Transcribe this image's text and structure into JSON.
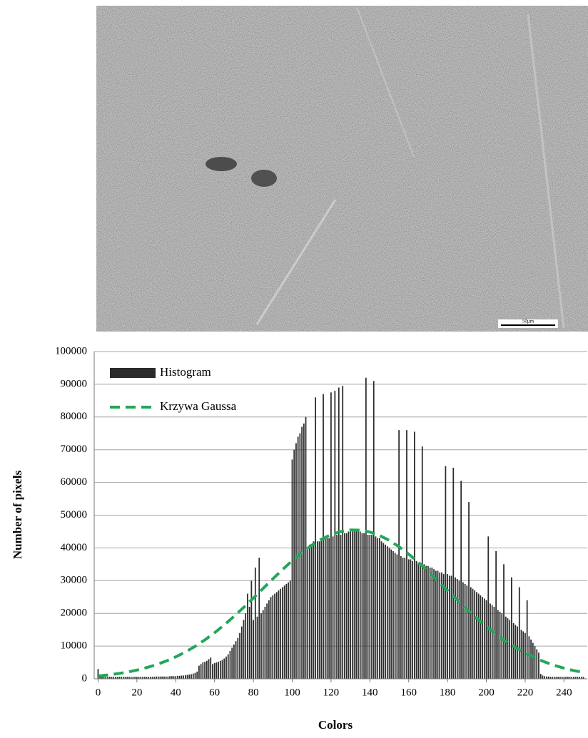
{
  "image": {
    "scale_bar_label": "50μm"
  },
  "chart_data": {
    "type": "bar",
    "xlabel": "Colors",
    "ylabel": "Number of pixels",
    "xlim": [
      -2,
      252
    ],
    "ylim": [
      0,
      100000
    ],
    "xticks": [
      0,
      20,
      40,
      60,
      80,
      100,
      120,
      140,
      160,
      180,
      200,
      220,
      240
    ],
    "yticks": [
      0,
      10000,
      20000,
      30000,
      40000,
      50000,
      60000,
      70000,
      80000,
      90000,
      100000
    ],
    "grid": true,
    "legend": "upper-left",
    "series": [
      {
        "name": "Histogram",
        "type": "bar",
        "color": "#2b2b2b",
        "x": [
          0,
          1,
          2,
          3,
          4,
          5,
          6,
          7,
          8,
          9,
          10,
          11,
          12,
          13,
          14,
          15,
          16,
          17,
          18,
          19,
          20,
          21,
          22,
          23,
          24,
          25,
          26,
          27,
          28,
          29,
          30,
          31,
          32,
          33,
          34,
          35,
          36,
          37,
          38,
          39,
          40,
          41,
          42,
          43,
          44,
          45,
          46,
          47,
          48,
          49,
          50,
          51,
          52,
          53,
          54,
          55,
          56,
          57,
          58,
          59,
          60,
          61,
          62,
          63,
          64,
          65,
          66,
          67,
          68,
          69,
          70,
          71,
          72,
          73,
          74,
          75,
          76,
          77,
          78,
          79,
          80,
          81,
          82,
          83,
          84,
          85,
          86,
          87,
          88,
          89,
          90,
          91,
          92,
          93,
          94,
          95,
          96,
          97,
          98,
          99,
          100,
          101,
          102,
          103,
          104,
          105,
          106,
          107,
          108,
          109,
          110,
          111,
          112,
          113,
          114,
          115,
          116,
          117,
          118,
          119,
          120,
          121,
          122,
          123,
          124,
          125,
          126,
          127,
          128,
          129,
          130,
          131,
          132,
          133,
          134,
          135,
          136,
          137,
          138,
          139,
          140,
          141,
          142,
          143,
          144,
          145,
          146,
          147,
          148,
          149,
          150,
          151,
          152,
          153,
          154,
          155,
          156,
          157,
          158,
          159,
          160,
          161,
          162,
          163,
          164,
          165,
          166,
          167,
          168,
          169,
          170,
          171,
          172,
          173,
          174,
          175,
          176,
          177,
          178,
          179,
          180,
          181,
          182,
          183,
          184,
          185,
          186,
          187,
          188,
          189,
          190,
          191,
          192,
          193,
          194,
          195,
          196,
          197,
          198,
          199,
          200,
          201,
          202,
          203,
          204,
          205,
          206,
          207,
          208,
          209,
          210,
          211,
          212,
          213,
          214,
          215,
          216,
          217,
          218,
          219,
          220,
          221,
          222,
          223,
          224,
          225,
          226,
          227,
          228,
          229,
          230,
          231,
          232,
          233,
          234,
          235,
          236,
          237,
          238,
          239,
          240,
          241,
          242,
          243,
          244,
          245,
          246,
          247,
          248,
          249,
          250
        ],
        "values": [
          3000,
          800,
          700,
          700,
          600,
          600,
          600,
          600,
          600,
          600,
          600,
          600,
          600,
          600,
          600,
          600,
          600,
          600,
          600,
          600,
          600,
          600,
          600,
          600,
          600,
          600,
          600,
          600,
          600,
          600,
          700,
          700,
          700,
          700,
          700,
          700,
          700,
          800,
          800,
          800,
          800,
          900,
          900,
          1000,
          1000,
          1100,
          1200,
          1300,
          1400,
          1600,
          1800,
          2200,
          4000,
          4500,
          5000,
          5200,
          5500,
          6000,
          6500,
          4500,
          4800,
          5000,
          5200,
          5500,
          5800,
          6200,
          6800,
          7500,
          8500,
          9500,
          10500,
          11500,
          12500,
          14000,
          16000,
          18000,
          20000,
          26000,
          22000,
          30000,
          18000,
          34000,
          19000,
          37000,
          20000,
          21000,
          22000,
          23000,
          24000,
          25000,
          25500,
          26000,
          26500,
          27000,
          27500,
          28000,
          28500,
          29000,
          29500,
          30000,
          67000,
          70000,
          72000,
          74000,
          75000,
          77000,
          78000,
          80000,
          40000,
          41000,
          41000,
          42000,
          86000,
          42000,
          42000,
          42500,
          87000,
          43000,
          43000,
          43000,
          87500,
          43500,
          88000,
          44000,
          89000,
          44000,
          89500,
          44500,
          44500,
          45000,
          45000,
          45000,
          45000,
          45000,
          45000,
          45000,
          44500,
          44500,
          92000,
          44000,
          44000,
          44000,
          91000,
          43500,
          43000,
          43000,
          42000,
          41500,
          41000,
          40500,
          40000,
          39500,
          39000,
          38500,
          38000,
          76000,
          37500,
          37000,
          37000,
          76000,
          36500,
          36500,
          36000,
          75500,
          36000,
          35500,
          35500,
          71000,
          35000,
          34500,
          34500,
          34000,
          34000,
          33500,
          33000,
          33000,
          32500,
          32500,
          32000,
          65000,
          32000,
          31500,
          31500,
          64500,
          31000,
          30500,
          30000,
          60500,
          29500,
          29000,
          28500,
          54000,
          28000,
          27500,
          27000,
          26500,
          26000,
          25500,
          25000,
          24500,
          24000,
          43500,
          23000,
          22500,
          22000,
          39000,
          21000,
          20500,
          20000,
          35000,
          19000,
          18500,
          18000,
          31000,
          17000,
          16500,
          16000,
          28000,
          15000,
          14500,
          14000,
          24000,
          13000,
          12000,
          11000,
          10000,
          9000,
          8000,
          1500,
          1000,
          800,
          700,
          700,
          600,
          600,
          600,
          600,
          600,
          600,
          600,
          600,
          600,
          600,
          600,
          600,
          600,
          600,
          600,
          600,
          600,
          600
        ]
      },
      {
        "name": "Krzywa Gaussa",
        "type": "line",
        "color": "#23a65a",
        "dashed": true,
        "x": [
          0,
          5,
          10,
          15,
          20,
          25,
          30,
          35,
          40,
          45,
          50,
          55,
          60,
          65,
          70,
          75,
          80,
          85,
          90,
          95,
          100,
          105,
          110,
          115,
          120,
          125,
          130,
          135,
          140,
          145,
          150,
          155,
          160,
          165,
          170,
          175,
          180,
          185,
          190,
          195,
          200,
          205,
          210,
          215,
          220,
          225,
          230,
          235,
          240,
          245,
          250
        ],
        "values": [
          885,
          1180,
          1570,
          2050,
          2660,
          3410,
          4320,
          5410,
          6700,
          8200,
          9930,
          11890,
          14080,
          16470,
          19060,
          21820,
          24660,
          27600,
          30530,
          33370,
          36080,
          38580,
          40780,
          42620,
          44050,
          45000,
          45480,
          45410,
          44850,
          43800,
          42290,
          40370,
          38090,
          35560,
          32810,
          29940,
          27010,
          24100,
          21250,
          18530,
          15980,
          13620,
          11480,
          9570,
          7880,
          6420,
          5170,
          4120,
          3250,
          2530,
          1950
        ]
      }
    ]
  }
}
